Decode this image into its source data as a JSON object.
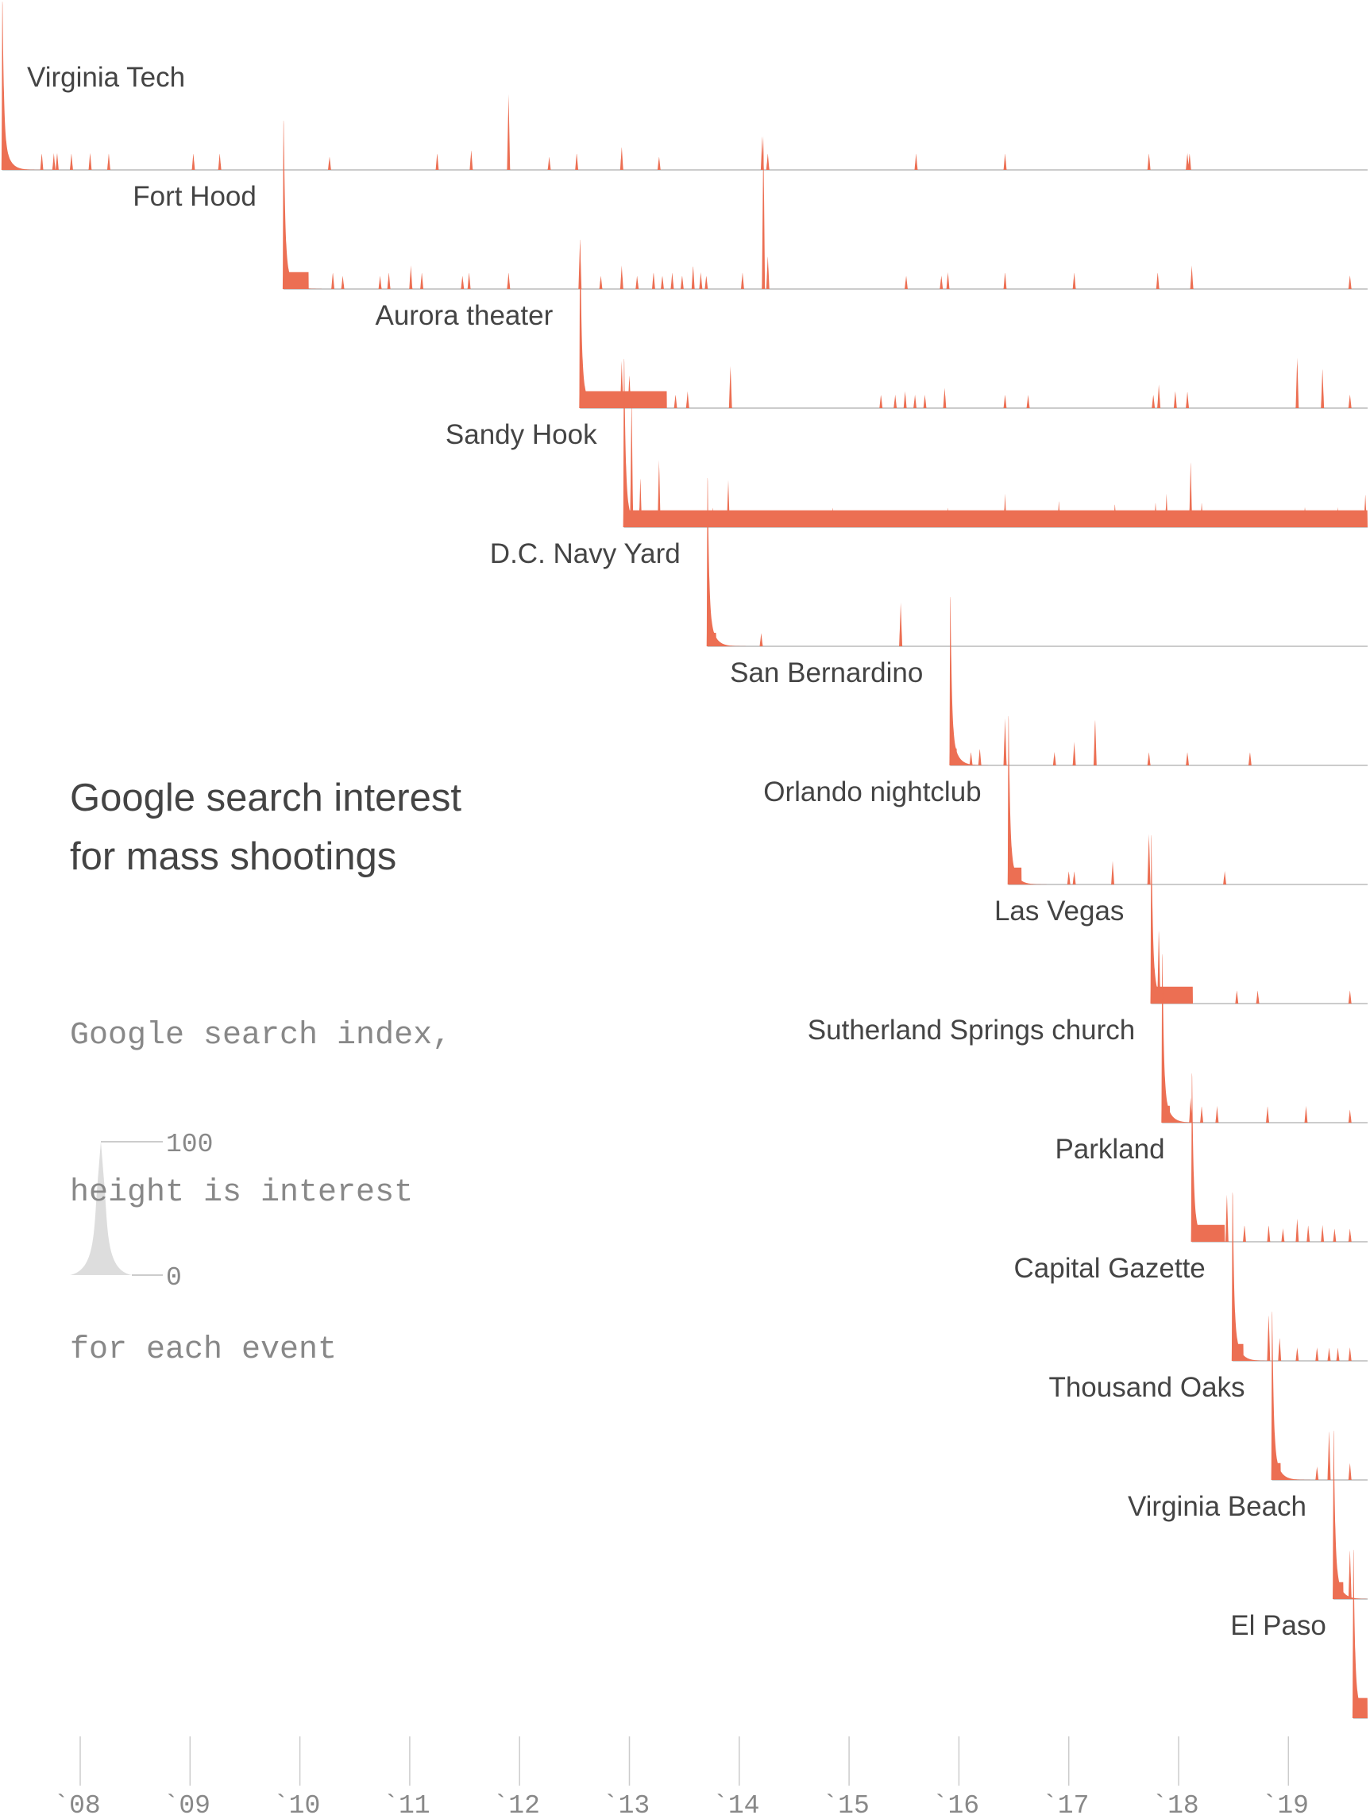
{
  "title_line1": "Google search interest",
  "title_line2": "for mass shootings",
  "subtitle_lines": [
    "Google search index,",
    "height is interest",
    "for each event"
  ],
  "legend": {
    "max_label": "100",
    "min_label": "0"
  },
  "colors": {
    "area": "#ec6f53",
    "baseline": "#cccccc",
    "legend": "#dddddd",
    "text": "#444444",
    "mono": "#888888"
  },
  "chart_data": {
    "type": "area",
    "title": "Google search interest for mass shootings",
    "ylabel": "Google search index, height is interest for each event",
    "ylim": [
      0,
      100
    ],
    "xlim": [
      2007.27,
      2019.72
    ],
    "x_ticks": [
      "`08",
      "`09",
      "`10",
      "`11",
      "`12",
      "`13",
      "`14",
      "`15",
      "`16",
      "`17",
      "`18",
      "`19"
    ],
    "x_tick_values": [
      2008,
      2009,
      2010,
      2011,
      2012,
      2013,
      2014,
      2015,
      2016,
      2017,
      2018,
      2019
    ],
    "series": [
      {
        "name": "Virginia Tech",
        "peak": 2007.29,
        "floor": 12,
        "floor_end": 2007.31,
        "spikes": [
          [
            2007.65,
            10
          ],
          [
            2007.76,
            10
          ],
          [
            2007.79,
            10
          ],
          [
            2007.92,
            10
          ],
          [
            2008.09,
            10
          ],
          [
            2008.26,
            10
          ],
          [
            2009.03,
            10
          ],
          [
            2009.27,
            10
          ],
          [
            2010.27,
            8
          ],
          [
            2011.25,
            10
          ],
          [
            2011.56,
            12
          ],
          [
            2011.9,
            45
          ],
          [
            2012.27,
            8
          ],
          [
            2012.52,
            10
          ],
          [
            2012.93,
            14
          ],
          [
            2013.27,
            8
          ],
          [
            2014.21,
            20
          ],
          [
            2014.26,
            10
          ],
          [
            2015.61,
            10
          ],
          [
            2016.42,
            10
          ],
          [
            2017.73,
            10
          ],
          [
            2018.08,
            10
          ],
          [
            2018.1,
            10
          ]
        ]
      },
      {
        "name": "Fort Hood",
        "peak": 2009.85,
        "floor": 10,
        "floor_end": 2010.08,
        "spikes": [
          [
            2010.3,
            10
          ],
          [
            2010.39,
            8
          ],
          [
            2010.73,
            8
          ],
          [
            2010.81,
            10
          ],
          [
            2011.01,
            14
          ],
          [
            2011.11,
            10
          ],
          [
            2011.48,
            8
          ],
          [
            2011.54,
            10
          ],
          [
            2011.9,
            10
          ],
          [
            2012.55,
            28
          ],
          [
            2012.74,
            8
          ],
          [
            2012.93,
            14
          ],
          [
            2013.07,
            8
          ],
          [
            2013.22,
            10
          ],
          [
            2013.3,
            8
          ],
          [
            2013.39,
            10
          ],
          [
            2013.48,
            8
          ],
          [
            2013.58,
            14
          ],
          [
            2013.65,
            10
          ],
          [
            2013.7,
            8
          ],
          [
            2014.03,
            10
          ],
          [
            2014.22,
            91
          ],
          [
            2014.26,
            20
          ],
          [
            2015.52,
            8
          ],
          [
            2015.84,
            8
          ],
          [
            2015.9,
            10
          ],
          [
            2016.42,
            10
          ],
          [
            2017.05,
            10
          ],
          [
            2017.81,
            10
          ],
          [
            2018.12,
            14
          ],
          [
            2019.56,
            8
          ]
        ]
      },
      {
        "name": "Aurora theater",
        "peak": 2012.55,
        "floor": 10,
        "floor_end": 2013.34,
        "spikes": [
          [
            2012.93,
            28
          ],
          [
            2013.0,
            20
          ],
          [
            2013.16,
            10
          ],
          [
            2013.42,
            8
          ],
          [
            2013.53,
            10
          ],
          [
            2013.92,
            25
          ],
          [
            2015.29,
            8
          ],
          [
            2015.42,
            8
          ],
          [
            2015.51,
            10
          ],
          [
            2015.6,
            8
          ],
          [
            2015.69,
            8
          ],
          [
            2015.87,
            12
          ],
          [
            2016.42,
            8
          ],
          [
            2016.63,
            8
          ],
          [
            2017.77,
            8
          ],
          [
            2017.82,
            14
          ],
          [
            2017.97,
            10
          ],
          [
            2018.08,
            10
          ],
          [
            2019.08,
            30
          ],
          [
            2019.31,
            24
          ],
          [
            2019.56,
            8
          ]
        ]
      },
      {
        "name": "Sandy Hook",
        "peak": 2012.95,
        "floor": 10,
        "floor_end": 2019.72,
        "spikes": [
          [
            2013.02,
            80
          ],
          [
            2013.1,
            30
          ],
          [
            2013.27,
            40
          ],
          [
            2013.76,
            12
          ],
          [
            2013.9,
            28
          ],
          [
            2014.14,
            8
          ],
          [
            2014.42,
            8
          ],
          [
            2014.71,
            10
          ],
          [
            2014.85,
            12
          ],
          [
            2014.95,
            10
          ],
          [
            2015.63,
            8
          ],
          [
            2015.9,
            12
          ],
          [
            2016.42,
            20
          ],
          [
            2016.91,
            16
          ],
          [
            2017.42,
            14
          ],
          [
            2017.79,
            15
          ],
          [
            2017.89,
            20
          ],
          [
            2018.11,
            40
          ],
          [
            2018.21,
            15
          ],
          [
            2019.15,
            12
          ],
          [
            2019.45,
            12
          ],
          [
            2019.7,
            20
          ]
        ]
      },
      {
        "name": "D.C. Navy Yard",
        "peak": 2013.71,
        "floor": 8,
        "floor_end": 2013.79,
        "spikes": [
          [
            2014.2,
            8
          ],
          [
            2015.47,
            26
          ]
        ]
      },
      {
        "name": "San Bernardino",
        "peak": 2015.92,
        "floor": 10,
        "floor_end": 2015.98,
        "spikes": [
          [
            2016.11,
            8
          ],
          [
            2016.19,
            10
          ],
          [
            2016.42,
            28
          ],
          [
            2016.87,
            8
          ],
          [
            2017.05,
            14
          ],
          [
            2017.24,
            28
          ],
          [
            2017.73,
            8
          ],
          [
            2018.08,
            8
          ],
          [
            2018.65,
            8
          ]
        ]
      },
      {
        "name": "Orlando nightclub",
        "peak": 2016.45,
        "floor": 10,
        "floor_end": 2016.57,
        "spikes": [
          [
            2017.0,
            8
          ],
          [
            2017.05,
            8
          ],
          [
            2017.4,
            14
          ],
          [
            2017.73,
            30
          ],
          [
            2018.42,
            8
          ]
        ]
      },
      {
        "name": "Las Vegas",
        "peak": 2017.75,
        "floor": 10,
        "floor_end": 2018.13,
        "spikes": [
          [
            2017.82,
            45
          ],
          [
            2017.97,
            8
          ],
          [
            2018.02,
            10
          ],
          [
            2018.08,
            10
          ],
          [
            2018.53,
            8
          ],
          [
            2018.72,
            8
          ],
          [
            2019.56,
            8
          ]
        ]
      },
      {
        "name": "Sutherland Springs church",
        "peak": 2017.85,
        "floor": 10,
        "floor_end": 2017.92,
        "spikes": [
          [
            2018.11,
            15
          ],
          [
            2018.21,
            10
          ],
          [
            2018.35,
            10
          ],
          [
            2018.81,
            10
          ],
          [
            2019.16,
            10
          ],
          [
            2019.56,
            8
          ]
        ]
      },
      {
        "name": "Parkland",
        "peak": 2018.12,
        "floor": 10,
        "floor_end": 2018.42,
        "spikes": [
          [
            2018.44,
            28
          ],
          [
            2018.6,
            10
          ],
          [
            2018.82,
            10
          ],
          [
            2018.95,
            8
          ],
          [
            2019.08,
            14
          ],
          [
            2019.18,
            10
          ],
          [
            2019.31,
            10
          ],
          [
            2019.42,
            8
          ],
          [
            2019.56,
            8
          ]
        ]
      },
      {
        "name": "Capital Gazette",
        "peak": 2018.49,
        "floor": 10,
        "floor_end": 2018.59,
        "spikes": [
          [
            2018.82,
            28
          ],
          [
            2018.92,
            14
          ],
          [
            2019.08,
            8
          ],
          [
            2019.26,
            8
          ],
          [
            2019.37,
            8
          ],
          [
            2019.45,
            8
          ],
          [
            2019.56,
            8
          ]
        ]
      },
      {
        "name": "Thousand Oaks",
        "peak": 2018.85,
        "floor": 10,
        "floor_end": 2018.93,
        "spikes": [
          [
            2019.26,
            8
          ],
          [
            2019.37,
            30
          ],
          [
            2019.56,
            10
          ]
        ]
      },
      {
        "name": "Virginia Beach",
        "peak": 2019.41,
        "floor": 10,
        "floor_end": 2019.5,
        "spikes": [
          [
            2019.56,
            30
          ]
        ]
      },
      {
        "name": "El Paso",
        "peak": 2019.59,
        "floor": 12,
        "floor_end": 2019.72,
        "spikes": []
      }
    ]
  }
}
